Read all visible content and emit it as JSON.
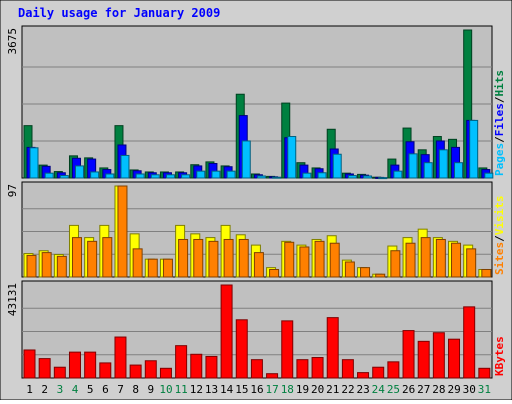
{
  "chart_data": {
    "type": "bar",
    "title": "Daily usage for January 2009",
    "categories": [
      "1",
      "2",
      "3",
      "4",
      "5",
      "6",
      "7",
      "8",
      "9",
      "10",
      "11",
      "12",
      "13",
      "14",
      "15",
      "16",
      "17",
      "18",
      "19",
      "20",
      "21",
      "22",
      "23",
      "24",
      "25",
      "26",
      "27",
      "28",
      "29",
      "30",
      "31"
    ],
    "weekend_days": [
      "3",
      "4",
      "10",
      "11",
      "17",
      "18",
      "24",
      "25",
      "31"
    ],
    "grid": true,
    "panels": [
      {
        "id": "hits",
        "ymax_label": "3675",
        "ymax": 3675,
        "legend": [
          {
            "text": "Pages",
            "color": "#00c0ff"
          },
          {
            "text": "/",
            "color": "#000000"
          },
          {
            "text": "Files",
            "color": "#0000ff"
          },
          {
            "text": "/",
            "color": "#000000"
          },
          {
            "text": "Hits",
            "color": "#008040"
          }
        ],
        "series": [
          {
            "name": "Hits",
            "color": "#008040",
            "values": [
              1300,
              320,
              160,
              550,
              500,
              250,
              1300,
              200,
              150,
              150,
              150,
              330,
              400,
              300,
              2080,
              100,
              40,
              1860,
              380,
              250,
              1210,
              120,
              90,
              20,
              470,
              1240,
              700,
              1030,
              960,
              3675,
              250
            ]
          },
          {
            "name": "Files",
            "color": "#0000ff",
            "values": [
              760,
              290,
              130,
              490,
              470,
              210,
              820,
              180,
              130,
              130,
              130,
              300,
              360,
              280,
              1550,
              80,
              30,
              1000,
              320,
              230,
              720,
              100,
              70,
              15,
              320,
              900,
              580,
              920,
              760,
              1430,
              210
            ]
          },
          {
            "name": "Pages",
            "color": "#00c0ff",
            "values": [
              750,
              120,
              60,
              300,
              150,
              100,
              560,
              100,
              80,
              80,
              80,
              170,
              170,
              170,
              920,
              50,
              20,
              1030,
              120,
              130,
              590,
              60,
              50,
              10,
              170,
              600,
              380,
              700,
              380,
              1430,
              120
            ]
          }
        ]
      },
      {
        "id": "visits",
        "ymax_label": "97",
        "ymax": 97,
        "legend": [
          {
            "text": "Sites",
            "color": "#ff8000"
          },
          {
            "text": "/",
            "color": "#000000"
          },
          {
            "text": "Visits",
            "color": "#ffff00"
          }
        ],
        "series": [
          {
            "name": "Visits",
            "color": "#ffff00",
            "values": [
              25,
              28,
              24,
              55,
              42,
              55,
              97,
              46,
              19,
              19,
              55,
              46,
              42,
              55,
              45,
              34,
              10,
              38,
              34,
              40,
              44,
              18,
              10,
              3,
              33,
              42,
              51,
              42,
              38,
              34,
              8
            ]
          },
          {
            "name": "Sites",
            "color": "#ff8000",
            "values": [
              23,
              26,
              22,
              42,
              38,
              42,
              97,
              30,
              19,
              19,
              40,
              40,
              38,
              40,
              40,
              26,
              8,
              37,
              32,
              38,
              36,
              16,
              10,
              3,
              28,
              36,
              42,
              40,
              36,
              30,
              8
            ]
          }
        ]
      },
      {
        "id": "kbytes",
        "ymax_label": "43131",
        "ymax": 43131,
        "legend": [
          {
            "text": "KBytes",
            "color": "#ff0000"
          }
        ],
        "series": [
          {
            "name": "KBytes",
            "color": "#ff0000",
            "values": [
              13000,
              9000,
              5000,
              12000,
              12000,
              7000,
              19000,
              6000,
              8000,
              4500,
              15000,
              11000,
              10000,
              43131,
              27000,
              8500,
              2000,
              26500,
              8500,
              9500,
              28000,
              8500,
              2500,
              5000,
              7500,
              22000,
              17000,
              21000,
              18000,
              33000,
              4500
            ]
          }
        ]
      }
    ]
  }
}
